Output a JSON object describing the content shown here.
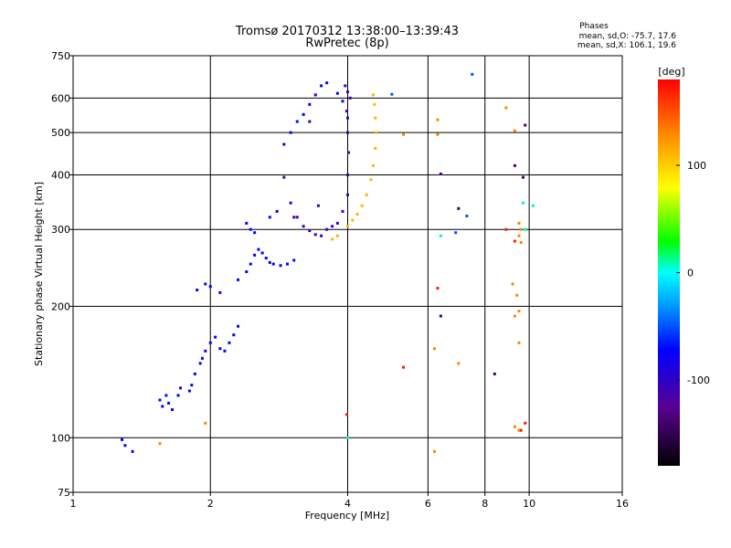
{
  "title": "Tromsø 20170312 13:38:00–13:39:43",
  "subtitle": "RwPretec (8p)",
  "phases": {
    "heading": "Phases",
    "line_o": "mean, sd,O: -75.7, 17.6",
    "line_x": "mean, sd,X: 106.1, 19.6"
  },
  "chart_data": {
    "type": "scatter",
    "xlabel": "Frequency [MHz]",
    "ylabel": "Stationary phase Virtual Height [km]",
    "xscale": "log",
    "yscale": "log",
    "xlim": [
      1,
      16
    ],
    "ylim": [
      75,
      750
    ],
    "x_ticks": [
      1,
      2,
      4,
      6,
      8,
      10,
      16
    ],
    "y_ticks": [
      75,
      100,
      200,
      300,
      400,
      500,
      600,
      750
    ],
    "colorbar": {
      "label": "[deg]",
      "range": [
        -180,
        180
      ],
      "ticks": [
        100,
        0,
        -100
      ]
    },
    "series": [
      {
        "points": [
          [
            1.28,
            99
          ],
          [
            1.3,
            96
          ],
          [
            1.35,
            93
          ],
          [
            1.55,
            122
          ],
          [
            1.57,
            118
          ],
          [
            1.6,
            125
          ],
          [
            1.62,
            120
          ],
          [
            1.65,
            116
          ],
          [
            1.7,
            125
          ],
          [
            1.72,
            130
          ],
          [
            1.8,
            128
          ],
          [
            1.82,
            132
          ],
          [
            1.85,
            140
          ],
          [
            1.9,
            148
          ],
          [
            1.92,
            152
          ],
          [
            1.95,
            158
          ],
          [
            2.0,
            165
          ],
          [
            2.05,
            170
          ],
          [
            2.1,
            160
          ],
          [
            2.15,
            158
          ],
          [
            2.2,
            165
          ],
          [
            2.25,
            172
          ],
          [
            2.3,
            180
          ],
          [
            1.87,
            218
          ],
          [
            1.95,
            225
          ],
          [
            2.0,
            222
          ],
          [
            2.1,
            215
          ],
          [
            2.3,
            230
          ],
          [
            2.4,
            240
          ],
          [
            2.45,
            250
          ],
          [
            2.5,
            262
          ],
          [
            2.55,
            270
          ],
          [
            2.6,
            265
          ],
          [
            2.65,
            258
          ],
          [
            2.7,
            252
          ],
          [
            2.75,
            250
          ],
          [
            2.85,
            248
          ],
          [
            2.95,
            250
          ],
          [
            3.05,
            255
          ],
          [
            2.4,
            310
          ],
          [
            2.45,
            300
          ],
          [
            2.5,
            295
          ],
          [
            2.9,
            470
          ],
          [
            3.0,
            500
          ],
          [
            3.1,
            530
          ],
          [
            3.2,
            550
          ],
          [
            3.3,
            580
          ],
          [
            3.4,
            610
          ],
          [
            3.5,
            640
          ],
          [
            3.6,
            650
          ],
          [
            3.8,
            615
          ],
          [
            3.9,
            590
          ],
          [
            2.7,
            320
          ],
          [
            2.8,
            330
          ]
        ],
        "phase": -70
      },
      {
        "points": [
          [
            2.9,
            395
          ],
          [
            3.0,
            345
          ],
          [
            3.1,
            320
          ],
          [
            3.2,
            305
          ],
          [
            3.3,
            298
          ],
          [
            3.4,
            292
          ],
          [
            3.5,
            290
          ],
          [
            3.6,
            300
          ],
          [
            3.7,
            305
          ],
          [
            3.8,
            310
          ],
          [
            3.9,
            330
          ],
          [
            4.0,
            360
          ],
          [
            4.0,
            400
          ],
          [
            4.02,
            450
          ],
          [
            4.0,
            500
          ],
          [
            3.98,
            560
          ],
          [
            4.0,
            620
          ],
          [
            3.95,
            640
          ],
          [
            4.05,
            600
          ],
          [
            4.0,
            540
          ],
          [
            3.05,
            320
          ],
          [
            3.3,
            530
          ],
          [
            3.45,
            340
          ]
        ],
        "phase": -110
      },
      {
        "points": [
          [
            3.7,
            285
          ],
          [
            3.8,
            290
          ],
          [
            4.0,
            305
          ],
          [
            4.1,
            315
          ],
          [
            4.2,
            325
          ],
          [
            4.3,
            340
          ],
          [
            4.4,
            360
          ],
          [
            4.5,
            390
          ],
          [
            4.55,
            420
          ],
          [
            4.6,
            460
          ],
          [
            4.62,
            500
          ],
          [
            4.6,
            540
          ],
          [
            4.58,
            580
          ],
          [
            4.55,
            610
          ]
        ],
        "phase": 110
      },
      {
        "points": [
          [
            5.3,
            495
          ],
          [
            6.3,
            535
          ],
          [
            6.3,
            495
          ],
          [
            8.9,
            570
          ],
          [
            9.3,
            505
          ],
          [
            9.5,
            310
          ],
          [
            9.6,
            300
          ],
          [
            9.5,
            290
          ],
          [
            9.6,
            280
          ],
          [
            9.2,
            225
          ],
          [
            9.4,
            212
          ],
          [
            9.5,
            195
          ],
          [
            9.3,
            190
          ],
          [
            9.5,
            165
          ],
          [
            9.3,
            106
          ],
          [
            9.5,
            104
          ],
          [
            6.2,
            160
          ],
          [
            7.0,
            148
          ],
          [
            6.2,
            93
          ],
          [
            1.95,
            108
          ],
          [
            1.55,
            97
          ]
        ],
        "phase": 130
      },
      {
        "points": [
          [
            6.3,
            220
          ],
          [
            5.3,
            145
          ],
          [
            9.3,
            282
          ],
          [
            8.9,
            300
          ],
          [
            3.98,
            113
          ],
          [
            9.8,
            108
          ],
          [
            9.6,
            104
          ]
        ],
        "phase": 170
      },
      {
        "points": [
          [
            9.7,
            345
          ],
          [
            10.2,
            340
          ],
          [
            6.4,
            290
          ],
          [
            4.0,
            100
          ],
          [
            9.8,
            300
          ]
        ],
        "phase": 10
      },
      {
        "points": [
          [
            6.4,
            190
          ],
          [
            8.4,
            140
          ],
          [
            9.3,
            420
          ],
          [
            9.7,
            395
          ],
          [
            9.8,
            520
          ],
          [
            6.4,
            402
          ],
          [
            7.0,
            335
          ]
        ],
        "phase": -140
      },
      {
        "points": [
          [
            7.5,
            680
          ],
          [
            7.3,
            322
          ],
          [
            6.9,
            295
          ],
          [
            5.0,
            612
          ]
        ],
        "phase": -50
      }
    ]
  }
}
